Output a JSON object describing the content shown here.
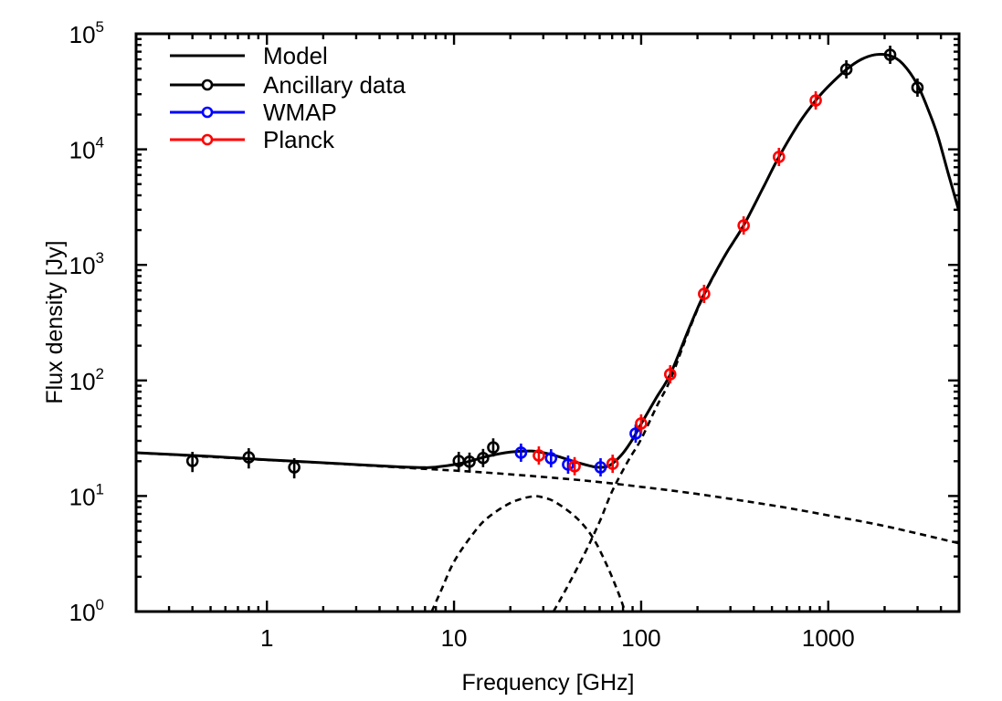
{
  "chart_data": {
    "type": "scatter",
    "title": "",
    "xlabel": "Frequency [GHz]",
    "ylabel": "Flux density [Jy]",
    "xscale": "log",
    "yscale": "log",
    "xlim": [
      0.2,
      5000
    ],
    "ylim": [
      1,
      100000
    ],
    "grid": false,
    "legend_position": "top-left",
    "x_ticks": [
      {
        "value": 1,
        "label": "1"
      },
      {
        "value": 10,
        "label": "10"
      },
      {
        "value": 100,
        "label": "100"
      },
      {
        "value": 1000,
        "label": "1000"
      }
    ],
    "y_ticks": [
      {
        "value": 1,
        "base": "10",
        "exp": "0"
      },
      {
        "value": 10,
        "base": "10",
        "exp": "1"
      },
      {
        "value": 100,
        "base": "10",
        "exp": "2"
      },
      {
        "value": 1000,
        "base": "10",
        "exp": "3"
      },
      {
        "value": 10000,
        "base": "10",
        "exp": "4"
      },
      {
        "value": 100000,
        "base": "10",
        "exp": "5"
      }
    ],
    "legend": [
      {
        "label": "Model",
        "color": "#000000",
        "marker": false
      },
      {
        "label": "Ancillary data",
        "color": "#000000",
        "marker": true
      },
      {
        "label": "WMAP",
        "color": "#0000ff",
        "marker": true
      },
      {
        "label": "Planck",
        "color": "#ff0000",
        "marker": true
      }
    ],
    "series": [
      {
        "name": "Ancillary data",
        "color": "#000000",
        "points": [
          {
            "x": 0.4,
            "y": 20.1,
            "err": 4.0
          },
          {
            "x": 0.8,
            "y": 21.6,
            "err": 4.3
          },
          {
            "x": 1.4,
            "y": 17.7,
            "err": 3.5
          },
          {
            "x": 10.6,
            "y": 20.1,
            "err": 2.0
          },
          {
            "x": 12.1,
            "y": 19.8,
            "err": 2.0
          },
          {
            "x": 14.3,
            "y": 21.3,
            "err": 2.1
          },
          {
            "x": 16.2,
            "y": 26.3,
            "err": 2.6
          },
          {
            "x": 1249,
            "y": 49200,
            "err": 6000
          },
          {
            "x": 2141,
            "y": 65800,
            "err": 6500
          },
          {
            "x": 2997,
            "y": 34200,
            "err": 3500
          }
        ]
      },
      {
        "name": "WMAP",
        "color": "#0000ff",
        "points": [
          {
            "x": 22.8,
            "y": 23.7,
            "err": 1.5
          },
          {
            "x": 33.0,
            "y": 21.2,
            "err": 1.5
          },
          {
            "x": 40.7,
            "y": 18.7,
            "err": 1.5
          },
          {
            "x": 60.7,
            "y": 17.7,
            "err": 1.8
          },
          {
            "x": 93.5,
            "y": 34.7,
            "err": 3.0
          }
        ]
      },
      {
        "name": "Planck",
        "color": "#ff0000",
        "points": [
          {
            "x": 28.4,
            "y": 22.4,
            "err": 1.6
          },
          {
            "x": 44.1,
            "y": 18.1,
            "err": 1.8
          },
          {
            "x": 70.4,
            "y": 19.0,
            "err": 2.0
          },
          {
            "x": 100,
            "y": 42.4,
            "err": 5.0
          },
          {
            "x": 143,
            "y": 113,
            "err": 10
          },
          {
            "x": 217,
            "y": 561,
            "err": 40
          },
          {
            "x": 353,
            "y": 2193,
            "err": 200
          },
          {
            "x": 545,
            "y": 8590,
            "err": 700
          },
          {
            "x": 857,
            "y": 26500,
            "err": 2000
          }
        ]
      }
    ],
    "curves": [
      {
        "name": "Model",
        "style": "solid",
        "points": [
          [
            0.2,
            23.7
          ],
          [
            0.5,
            22.0
          ],
          [
            1,
            20.6
          ],
          [
            2,
            19.4
          ],
          [
            5,
            17.9
          ],
          [
            7,
            17.6
          ],
          [
            8,
            17.8
          ],
          [
            10,
            18.7
          ],
          [
            12,
            19.9
          ],
          [
            15,
            22.0
          ],
          [
            20,
            24.0
          ],
          [
            26,
            24.5
          ],
          [
            30,
            23.7
          ],
          [
            35,
            22.3
          ],
          [
            45,
            19.6
          ],
          [
            55,
            18.0
          ],
          [
            60,
            17.7
          ],
          [
            65,
            17.9
          ],
          [
            70,
            19.0
          ],
          [
            80,
            23.5
          ],
          [
            90,
            31
          ],
          [
            100,
            42
          ],
          [
            120,
            70
          ],
          [
            143,
            113
          ],
          [
            180,
            280
          ],
          [
            217,
            560
          ],
          [
            280,
            1200
          ],
          [
            353,
            2200
          ],
          [
            450,
            4700
          ],
          [
            545,
            8600
          ],
          [
            700,
            17000
          ],
          [
            857,
            26500
          ],
          [
            1000,
            35000
          ],
          [
            1249,
            49000
          ],
          [
            1500,
            60000
          ],
          [
            1800,
            66000
          ],
          [
            2141,
            64500
          ],
          [
            2500,
            55000
          ],
          [
            3000,
            36000
          ],
          [
            3500,
            20000
          ],
          [
            3860,
            12800
          ],
          [
            4400,
            6000
          ],
          [
            5000,
            2900
          ]
        ]
      },
      {
        "name": "Free-free / synchrotron component",
        "style": "dashed",
        "points": [
          [
            0.2,
            23.7
          ],
          [
            0.5,
            21.8
          ],
          [
            1,
            20.5
          ],
          [
            2,
            19.3
          ],
          [
            5,
            17.7
          ],
          [
            10,
            16.6
          ],
          [
            20,
            15.4
          ],
          [
            50,
            13.6
          ],
          [
            100,
            12.0
          ],
          [
            200,
            10.4
          ],
          [
            500,
            8.3
          ],
          [
            1000,
            6.8
          ],
          [
            2000,
            5.5
          ],
          [
            5000,
            3.9
          ]
        ]
      },
      {
        "name": "Anomalous microwave emission component",
        "style": "dashed",
        "points": [
          [
            7.6,
            1.0
          ],
          [
            8.5,
            1.5
          ],
          [
            10,
            2.7
          ],
          [
            12.5,
            4.6
          ],
          [
            15,
            6.4
          ],
          [
            20,
            8.7
          ],
          [
            26,
            9.9
          ],
          [
            30,
            9.7
          ],
          [
            35,
            8.8
          ],
          [
            45,
            6.5
          ],
          [
            55,
            4.4
          ],
          [
            65,
            2.6
          ],
          [
            75,
            1.5
          ],
          [
            82,
            1.0
          ]
        ]
      },
      {
        "name": "Thermal dust component",
        "style": "dashed",
        "points": [
          [
            34,
            1.0
          ],
          [
            40,
            1.6
          ],
          [
            50,
            3.2
          ],
          [
            60,
            6.0
          ],
          [
            70,
            11
          ],
          [
            85,
            20
          ],
          [
            100,
            31
          ],
          [
            120,
            58
          ],
          [
            143,
            101
          ],
          [
            180,
            270
          ],
          [
            217,
            550
          ],
          [
            280,
            1190
          ],
          [
            353,
            2190
          ],
          [
            450,
            4700
          ],
          [
            545,
            8600
          ],
          [
            700,
            17000
          ],
          [
            857,
            26500
          ],
          [
            1000,
            35000
          ],
          [
            1249,
            49000
          ],
          [
            1500,
            60000
          ],
          [
            1800,
            66000
          ],
          [
            2141,
            64500
          ],
          [
            2500,
            55000
          ],
          [
            3000,
            36000
          ],
          [
            3500,
            20000
          ],
          [
            3860,
            12800
          ],
          [
            4400,
            6000
          ],
          [
            5000,
            2900
          ]
        ]
      }
    ]
  }
}
